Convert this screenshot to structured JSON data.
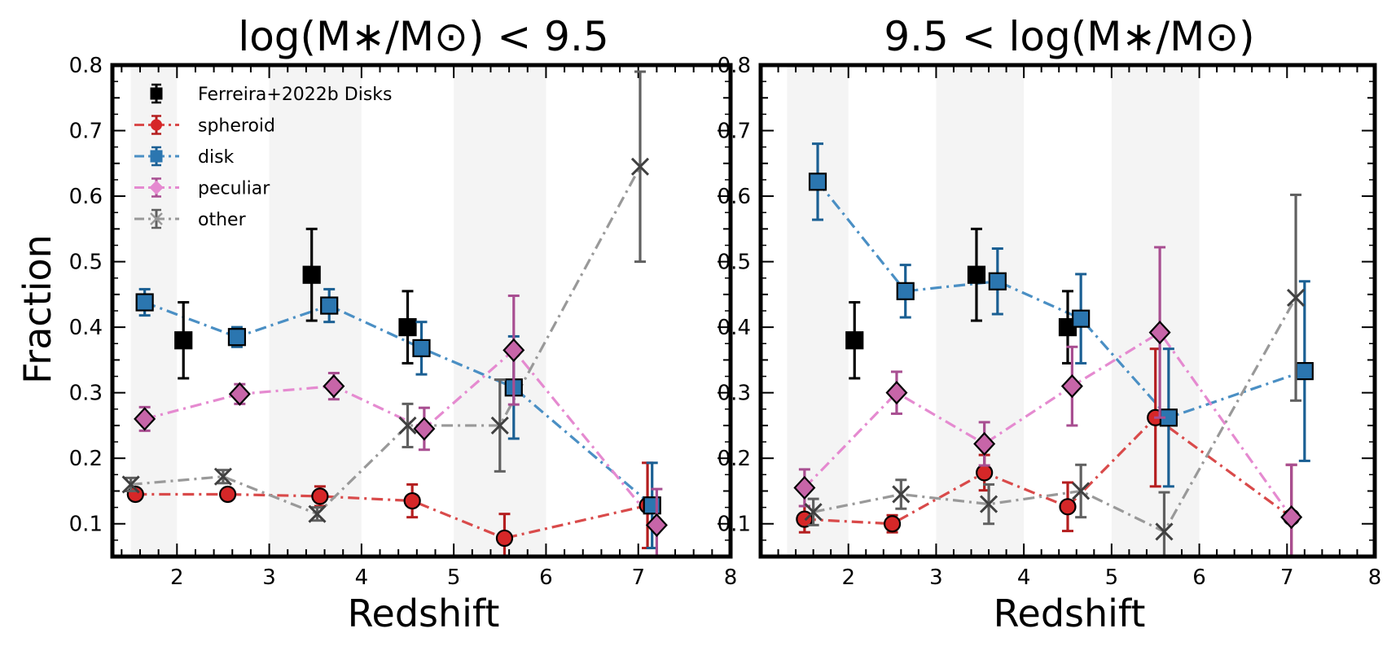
{
  "chart_data": [
    {
      "type": "line",
      "title": "log(M∗/M⊙) < 9.5",
      "xlabel": "Redshift",
      "ylabel": "Fraction",
      "xlim": [
        1.3,
        8
      ],
      "ylim": [
        0.05,
        0.8
      ],
      "xticks": [
        2,
        3,
        4,
        5,
        6,
        7,
        8
      ],
      "yticks": [
        0.1,
        0.2,
        0.3,
        0.4,
        0.5,
        0.6,
        0.7,
        0.8
      ],
      "shaded_bands": [
        [
          1.5,
          2
        ],
        [
          3,
          4
        ],
        [
          5,
          6
        ]
      ],
      "legend": {
        "placement": "top-left",
        "entries": [
          "Ferreira+2022b Disks",
          "spheroid",
          "disk",
          "peculiar",
          "other"
        ]
      },
      "series": [
        {
          "name": "Ferreira+2022b Disks",
          "color": "#000000",
          "marker": "square",
          "line": "none",
          "x": [
            2.07,
            3.46,
            4.5
          ],
          "y": [
            0.38,
            0.48,
            0.4
          ],
          "err": [
            0.058,
            0.07,
            0.055
          ]
        },
        {
          "name": "spheroid",
          "color": "#d62728",
          "marker": "circle",
          "line": "dashdot",
          "x": [
            1.55,
            2.55,
            3.55,
            4.55,
            5.55,
            7.1
          ],
          "y": [
            0.145,
            0.145,
            0.142,
            0.135,
            0.078,
            0.128
          ],
          "err": [
            0.008,
            0.008,
            0.015,
            0.025,
            0.037,
            0.065
          ]
        },
        {
          "name": "disk",
          "color": "#1f77b4",
          "marker": "square",
          "line": "dashdot",
          "x": [
            1.65,
            2.65,
            3.65,
            4.65,
            5.65,
            7.15
          ],
          "y": [
            0.438,
            0.385,
            0.433,
            0.368,
            0.308,
            0.128
          ],
          "err": [
            0.02,
            0.015,
            0.025,
            0.04,
            0.078,
            0.065
          ]
        },
        {
          "name": "peculiar",
          "color": "#e377c2",
          "marker": "diamond",
          "line": "dashdot",
          "x": [
            1.65,
            2.68,
            3.7,
            4.68,
            5.65,
            7.2
          ],
          "y": [
            0.26,
            0.298,
            0.31,
            0.245,
            0.365,
            0.098
          ],
          "err": [
            0.018,
            0.015,
            0.02,
            0.032,
            0.083,
            0.055
          ]
        },
        {
          "name": "other",
          "color": "#7f7f7f",
          "marker": "x",
          "line": "dashdot",
          "x": [
            1.5,
            2.5,
            3.52,
            4.5,
            5.5,
            7.02
          ],
          "y": [
            0.16,
            0.172,
            0.115,
            0.25,
            0.25,
            0.645
          ],
          "err": [
            0.01,
            0.01,
            0.01,
            0.033,
            0.07,
            0.145
          ]
        }
      ]
    },
    {
      "type": "line",
      "title": "9.5 < log(M∗/M⊙)",
      "xlabel": "Redshift",
      "ylabel": "",
      "xlim": [
        1,
        8
      ],
      "ylim": [
        0.05,
        0.8
      ],
      "xticks": [
        2,
        3,
        4,
        5,
        6,
        7,
        8
      ],
      "yticks": [
        0.1,
        0.2,
        0.3,
        0.4,
        0.5,
        0.6,
        0.7,
        0.8
      ],
      "shaded_bands": [
        [
          1.3,
          2
        ],
        [
          3,
          4
        ],
        [
          5,
          6
        ]
      ],
      "series": [
        {
          "name": "Ferreira+2022b Disks",
          "color": "#000000",
          "marker": "square",
          "line": "none",
          "x": [
            2.07,
            3.46,
            4.5
          ],
          "y": [
            0.38,
            0.48,
            0.4
          ],
          "err": [
            0.058,
            0.07,
            0.055
          ]
        },
        {
          "name": "spheroid",
          "color": "#d62728",
          "marker": "circle",
          "line": "dashdot",
          "x": [
            1.5,
            2.5,
            3.55,
            4.5,
            5.5,
            7.05
          ],
          "y": [
            0.107,
            0.1,
            0.178,
            0.126,
            0.262,
            0.11
          ],
          "err": [
            0.02,
            0.013,
            0.027,
            0.037,
            0.105,
            0.08
          ]
        },
        {
          "name": "disk",
          "color": "#1f77b4",
          "marker": "square",
          "line": "dashdot",
          "x": [
            1.65,
            2.65,
            3.7,
            4.65,
            5.65,
            7.2
          ],
          "y": [
            0.622,
            0.455,
            0.47,
            0.413,
            0.262,
            0.333
          ],
          "err": [
            0.058,
            0.04,
            0.05,
            0.068,
            0.105,
            0.137
          ]
        },
        {
          "name": "peculiar",
          "color": "#e377c2",
          "marker": "diamond",
          "line": "dashdot",
          "x": [
            1.5,
            2.55,
            3.55,
            4.55,
            5.55,
            7.05
          ],
          "y": [
            0.155,
            0.3,
            0.222,
            0.31,
            0.392,
            0.11
          ],
          "err": [
            0.028,
            0.032,
            0.033,
            0.06,
            0.13,
            0.08
          ]
        },
        {
          "name": "other",
          "color": "#7f7f7f",
          "marker": "x",
          "line": "dashdot",
          "x": [
            1.6,
            2.6,
            3.6,
            4.65,
            5.6,
            7.1
          ],
          "y": [
            0.118,
            0.145,
            0.13,
            0.15,
            0.088,
            0.445
          ],
          "err": [
            0.02,
            0.022,
            0.03,
            0.04,
            0.06,
            0.157
          ]
        }
      ]
    }
  ]
}
